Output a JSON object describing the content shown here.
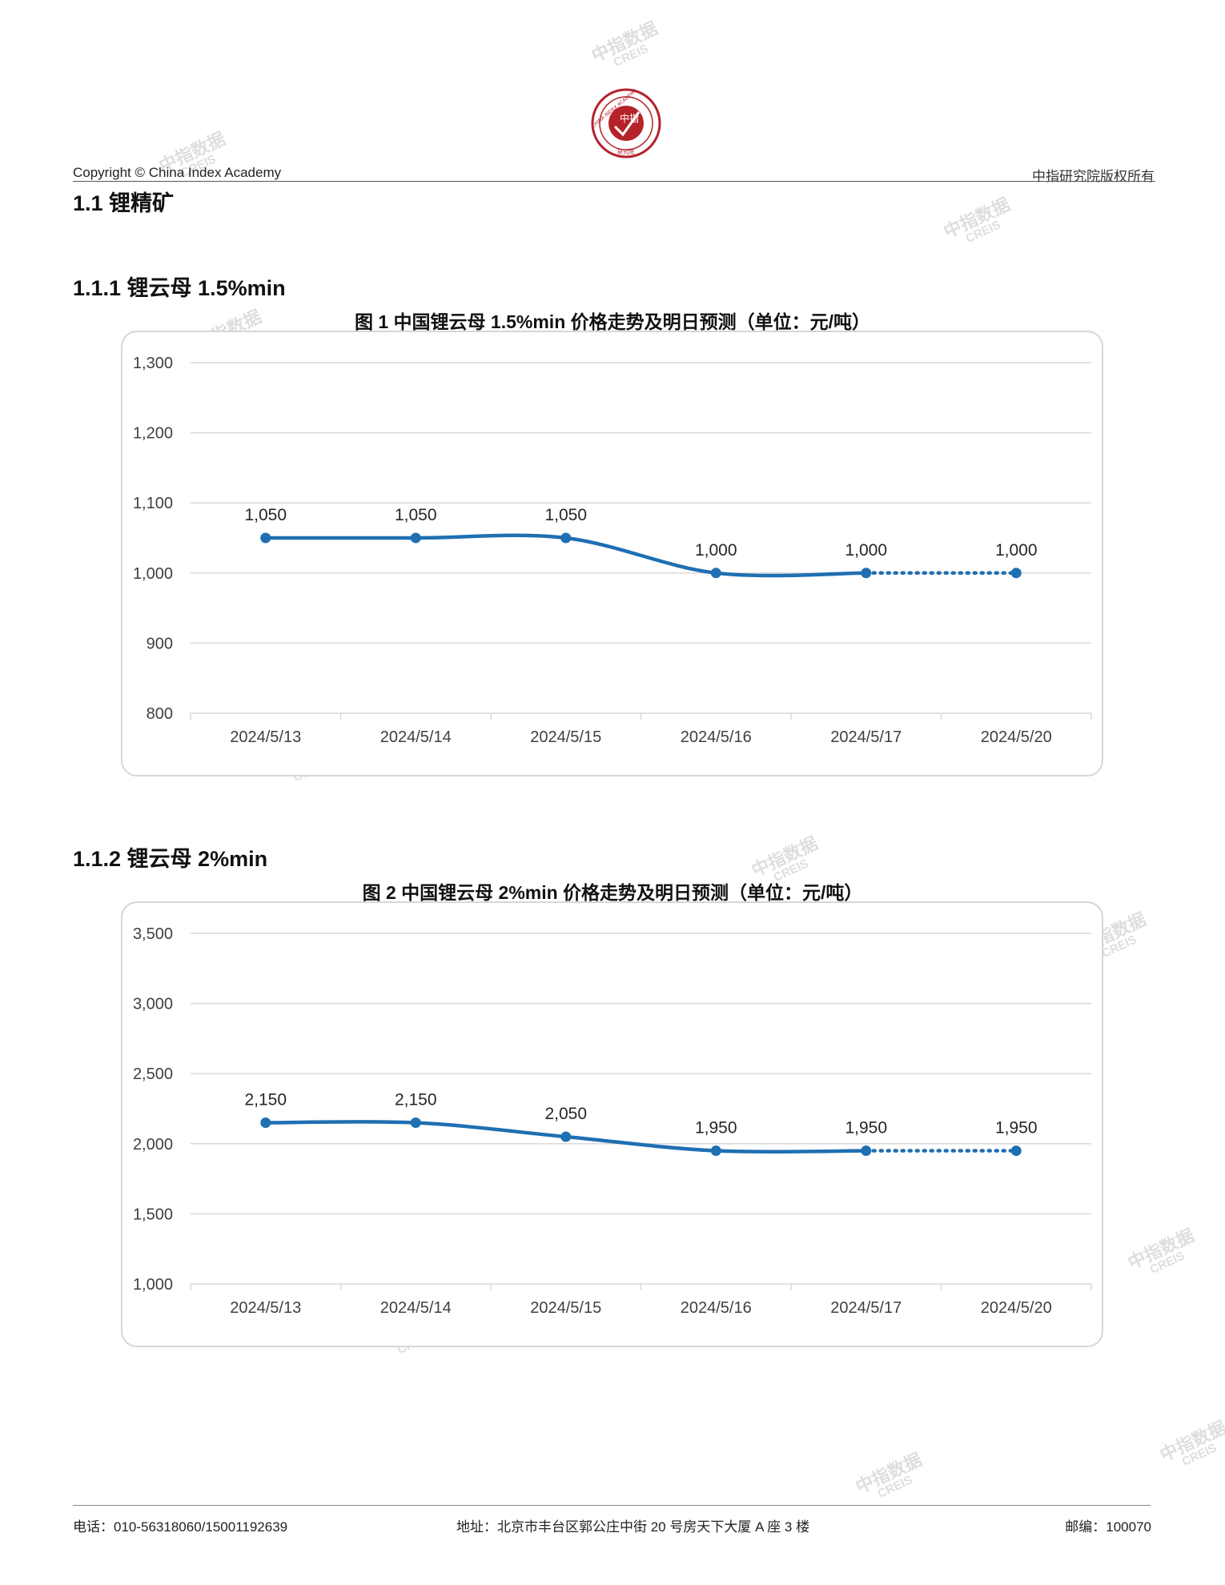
{
  "header": {
    "copyright": "Copyright © China Index Academy",
    "rights": "中指研究院版权所有",
    "logo": {
      "name": "china-index-academy-seal",
      "center_text": "中指",
      "ring_text": "CHINA INDEX ACADEMY",
      "bottom_text": "研究院",
      "color": "#b5222a"
    }
  },
  "section": {
    "h1": "1.1 锂精矿",
    "sub1": "1.1.1 锂云母 1.5%min",
    "sub2": "1.1.2 锂云母 2%min"
  },
  "watermark": {
    "cn": "中指数据",
    "en": "CREIS"
  },
  "chart_data": [
    {
      "type": "line",
      "title": "图 1 中国锂云母 1.5%min 价格走势及明日预测（单位：元/吨）",
      "categories": [
        "2024/5/13",
        "2024/5/14",
        "2024/5/15",
        "2024/5/16",
        "2024/5/17",
        "2024/5/20"
      ],
      "series": [
        {
          "values": [
            1050,
            1050,
            1050,
            1000,
            1000,
            1000
          ],
          "data_labels": [
            "1,050",
            "1,050",
            "1,050",
            "1,000",
            "1,000",
            "1,000"
          ],
          "forecast_last": true
        }
      ],
      "ylim": [
        800,
        1300
      ],
      "yticks": [
        800,
        900,
        1000,
        1100,
        1200,
        1300
      ],
      "ytick_labels": [
        "800",
        "900",
        "1,000",
        "1,100",
        "1,200",
        "1,300"
      ],
      "grid": true,
      "color": "#1f6fb2"
    },
    {
      "type": "line",
      "title": "图 2 中国锂云母 2%min 价格走势及明日预测（单位：元/吨）",
      "categories": [
        "2024/5/13",
        "2024/5/14",
        "2024/5/15",
        "2024/5/16",
        "2024/5/17",
        "2024/5/20"
      ],
      "series": [
        {
          "values": [
            2150,
            2150,
            2050,
            1950,
            1950,
            1950
          ],
          "data_labels": [
            "2,150",
            "2,150",
            "2,050",
            "1,950",
            "1,950",
            "1,950"
          ],
          "forecast_last": true
        }
      ],
      "ylim": [
        1000,
        3500
      ],
      "yticks": [
        1000,
        1500,
        2000,
        2500,
        3000,
        3500
      ],
      "ytick_labels": [
        "1,000",
        "1,500",
        "2,000",
        "2,500",
        "3,000",
        "3,500"
      ],
      "grid": true,
      "color": "#1f6fb2"
    }
  ],
  "footer": {
    "phone": "电话：010-56318060/15001192639",
    "address": "地址：北京市丰台区郭公庄中街 20 号房天下大厦 A 座 3 楼",
    "postcode": "邮编：100070"
  }
}
